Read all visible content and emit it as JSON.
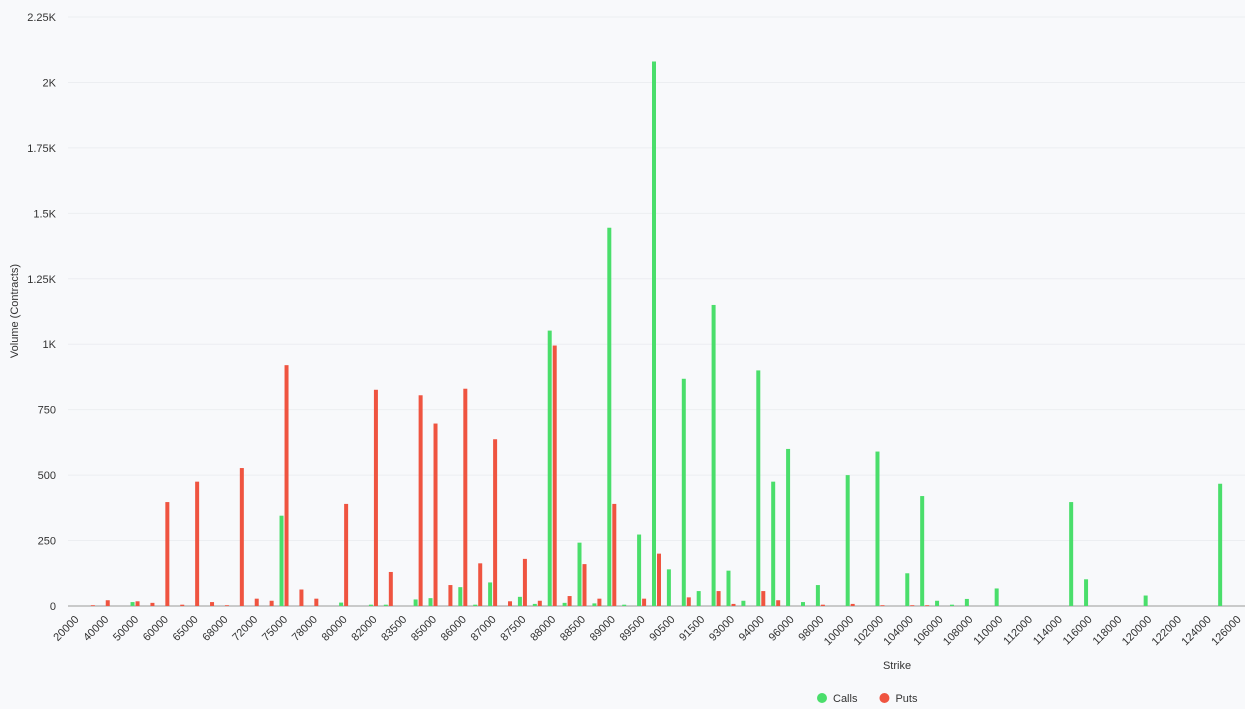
{
  "chart_data": {
    "type": "bar",
    "x_label": "Strike",
    "y_label": "Volume (Contracts)",
    "categories": [
      "20000",
      null,
      "40000",
      null,
      "50000",
      null,
      "60000",
      null,
      "65000",
      null,
      "68000",
      null,
      "72000",
      null,
      "75000",
      null,
      "78000",
      null,
      "80000",
      null,
      "82000",
      null,
      "83500",
      null,
      "85000",
      null,
      "86000",
      null,
      "87000",
      null,
      "87500",
      null,
      "88000",
      null,
      "88500",
      null,
      "89000",
      null,
      "89500",
      null,
      "90500",
      null,
      "91500",
      null,
      "93000",
      null,
      "94000",
      null,
      "96000",
      null,
      "98000",
      null,
      "100000",
      null,
      "102000",
      null,
      "104000",
      null,
      "106000",
      null,
      "108000",
      null,
      "110000",
      null,
      "112000",
      null,
      "114000",
      null,
      "116000",
      null,
      "118000",
      null,
      "120000",
      null,
      "122000",
      null,
      "124000",
      null,
      "126000"
    ],
    "series": [
      {
        "name": "Calls",
        "color": "#4ade6b",
        "values": [
          0,
          0,
          0,
          0,
          15,
          0,
          0,
          0,
          0,
          0,
          0,
          0,
          0,
          0,
          345,
          0,
          0,
          0,
          13,
          0,
          5,
          5,
          0,
          25,
          30,
          0,
          72,
          5,
          90,
          0,
          35,
          8,
          1052,
          12,
          242,
          10,
          1445,
          5,
          273,
          2080,
          140,
          868,
          57,
          1150,
          135,
          20,
          900,
          475,
          600,
          15,
          80,
          0,
          500,
          0,
          590,
          0,
          125,
          420,
          20,
          5,
          27,
          0,
          67,
          0,
          0,
          0,
          0,
          397,
          102,
          0,
          0,
          0,
          40,
          0,
          0,
          0,
          0,
          467,
          0
        ]
      },
      {
        "name": "Puts",
        "color": "#ef5440",
        "values": [
          0,
          3,
          22,
          0,
          18,
          12,
          397,
          5,
          475,
          15,
          3,
          527,
          28,
          20,
          920,
          63,
          28,
          0,
          390,
          0,
          826,
          130,
          0,
          805,
          697,
          80,
          830,
          163,
          637,
          18,
          180,
          20,
          995,
          38,
          160,
          28,
          390,
          0,
          28,
          200,
          0,
          33,
          0,
          57,
          8,
          0,
          57,
          22,
          0,
          0,
          5,
          0,
          8,
          0,
          3,
          0,
          3,
          3,
          0,
          0,
          0,
          0,
          0,
          0,
          0,
          0,
          0,
          0,
          0,
          0,
          0,
          0,
          0,
          0,
          0,
          0,
          0,
          0,
          0
        ]
      }
    ],
    "ylim": [
      0,
      2250
    ],
    "yticks": [
      0,
      250,
      500,
      750,
      {
        "value": 1000,
        "label": "1K"
      },
      {
        "value": 1250,
        "label": "1.25K"
      },
      {
        "value": 1500,
        "label": "1.5K"
      },
      {
        "value": 1750,
        "label": "1.75K"
      },
      {
        "value": 2000,
        "label": "2K"
      },
      {
        "value": 2250,
        "label": "2.25K"
      }
    ],
    "grid": true,
    "legend": "bottom"
  }
}
